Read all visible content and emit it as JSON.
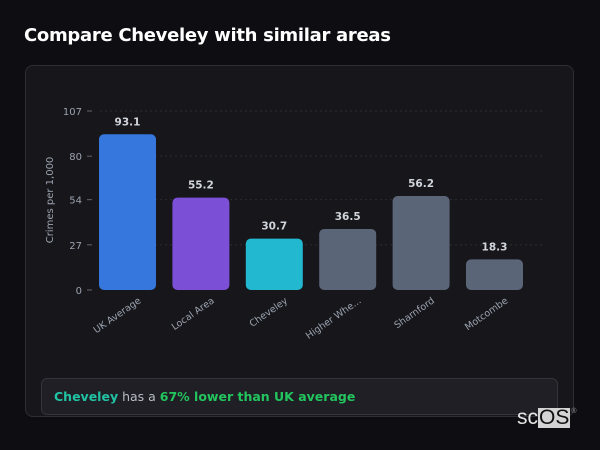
{
  "header": {
    "title": "Compare Cheveley with similar areas"
  },
  "chart_data": {
    "type": "bar",
    "title": "",
    "xlabel": "",
    "ylabel": "Crimes per 1,000",
    "ylim": [
      0,
      107
    ],
    "yticks": [
      0,
      27,
      54,
      80,
      107
    ],
    "grid": true,
    "categories": [
      "UK Average",
      "Local Area",
      "Cheveley",
      "Higher Whe...",
      "Sharnford",
      "Motcombe"
    ],
    "values": [
      93.1,
      55.2,
      30.7,
      36.5,
      56.2,
      18.3
    ],
    "value_labels": [
      "93.1",
      "55.2",
      "30.7",
      "36.5",
      "56.2",
      "18.3"
    ],
    "colors": [
      "#3577dc",
      "#7b4fd6",
      "#22b8cf",
      "#5b6578",
      "#5b6578",
      "#5b6578"
    ]
  },
  "insight": {
    "area": "Cheveley",
    "middle": " has a ",
    "comparison": "67% lower than UK average"
  },
  "logo": {
    "text": "scOS"
  }
}
